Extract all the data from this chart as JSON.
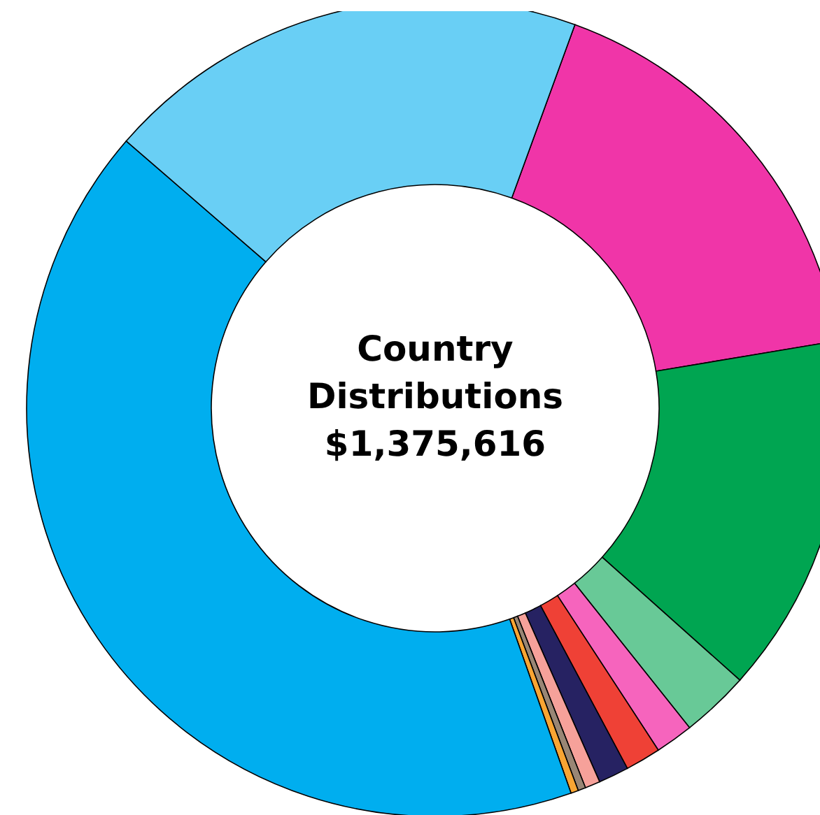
{
  "chart_data": {
    "type": "donut",
    "title": "Country Distributions",
    "subtitle": "$1,375,616",
    "categories": [
      null,
      null,
      null,
      null,
      null,
      null,
      null,
      null,
      null,
      null,
      null
    ],
    "values": [
      16.8,
      14.25,
      2.7,
      1.5,
      1.4,
      1.2,
      0.6,
      0.3,
      0.3,
      41.75,
      19.2
    ],
    "colors": [
      "#f035a8",
      "#00a551",
      "#68c997",
      "#f664bd",
      "#ef4136",
      "#262262",
      "#f6a19a",
      "#998675",
      "#f9a533",
      "#00aeef",
      "#69cff5"
    ],
    "legend": false
  }
}
